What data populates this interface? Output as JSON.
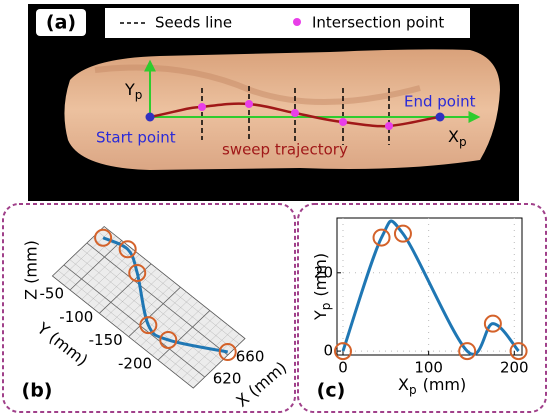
{
  "panel_a": {
    "label": "(a)",
    "legend": [
      "Seeds line",
      "Intersection point"
    ],
    "axis_y": {
      "main": "Y",
      "sub": "p"
    },
    "axis_x": {
      "main": "X",
      "sub": "p"
    },
    "start": "Start point",
    "end": "End point",
    "trajectory": "sweep trajectory"
  },
  "chart_data": [
    {
      "type": "line3d",
      "label": "(b)",
      "x": [
        678,
        686,
        670,
        627,
        628,
        663
      ],
      "y": [
        -30,
        -64,
        -96,
        -157,
        -190,
        -257
      ],
      "xlim": [
        600,
        690
      ],
      "ylim": [
        -260,
        -20
      ],
      "xticks": [
        620,
        660
      ],
      "yticks": [
        -50,
        -100,
        -150,
        -200
      ],
      "xlabel": "X (mm)",
      "ylabel": "Y (mm)",
      "zlabel": "Z (mm)",
      "color": "#1f77b4",
      "marker_color": "#d4622a"
    },
    {
      "type": "line",
      "label": "(c)",
      "x": [
        0,
        45,
        70,
        145,
        175,
        205
      ],
      "y": [
        0,
        29,
        30,
        0,
        7,
        0
      ],
      "xlim": [
        -7,
        209
      ],
      "ylim": [
        -1,
        34
      ],
      "xticks": [
        0,
        100,
        200
      ],
      "yticks": [
        0,
        20
      ],
      "xlabel": {
        "main": "X",
        "sub": "p",
        "unit": "(mm)"
      },
      "ylabel": {
        "main": "Y",
        "sub": "p",
        "unit": "(mm)"
      },
      "color": "#1f77b4",
      "marker_color": "#d4622a",
      "grid": true
    }
  ]
}
